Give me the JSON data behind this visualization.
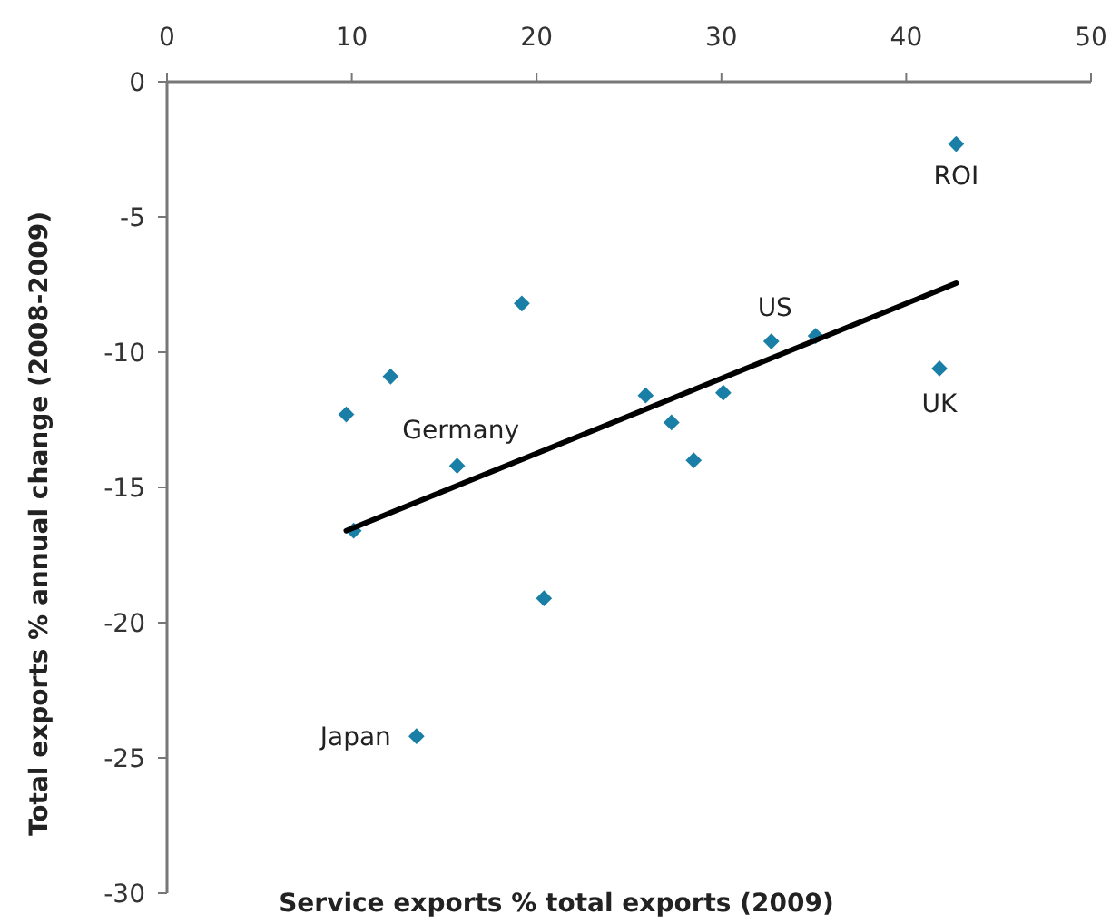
{
  "chart_data": {
    "type": "scatter",
    "xlabel": "Service exports % total exports (2009)",
    "ylabel": "Total exports % annual change (2008-2009)",
    "xlim": [
      0,
      50
    ],
    "xticks": [
      0,
      10,
      20,
      30,
      40,
      50
    ],
    "ylim": [
      -30,
      0
    ],
    "yticks": [
      0,
      -5,
      -10,
      -15,
      -20,
      -25,
      -30
    ],
    "marker": "diamond",
    "grid": false,
    "series": [
      {
        "color": "#1a7fa6",
        "x": [
          19.2,
          12.1,
          9.7,
          15.7,
          42.7,
          32.7,
          35.1,
          41.8,
          25.9,
          30.1,
          27.3,
          28.5,
          10.1,
          20.4,
          13.5
        ],
        "values": [
          -8.2,
          -10.9,
          -12.3,
          -14.2,
          -2.3,
          -9.6,
          -9.4,
          -10.6,
          -11.6,
          -11.5,
          -12.6,
          -14.0,
          -16.6,
          -19.1,
          -24.2
        ]
      },
      {
        "type": "line",
        "color": "#000000",
        "x": [
          9.7,
          42.7
        ],
        "values": [
          -16.6,
          -7.45
        ],
        "marker": "none"
      }
    ],
    "annotations": [
      {
        "text": "ROI",
        "x": 42.7,
        "y": -2.3
      },
      {
        "text": "US",
        "x": 32.7,
        "y": -9.6
      },
      {
        "text": "UK",
        "x": 41.8,
        "y": -10.6
      },
      {
        "text": "Germany",
        "x": 15.7,
        "y": -14.2
      },
      {
        "text": "Japan",
        "x": 13.5,
        "y": -24.2
      }
    ]
  }
}
